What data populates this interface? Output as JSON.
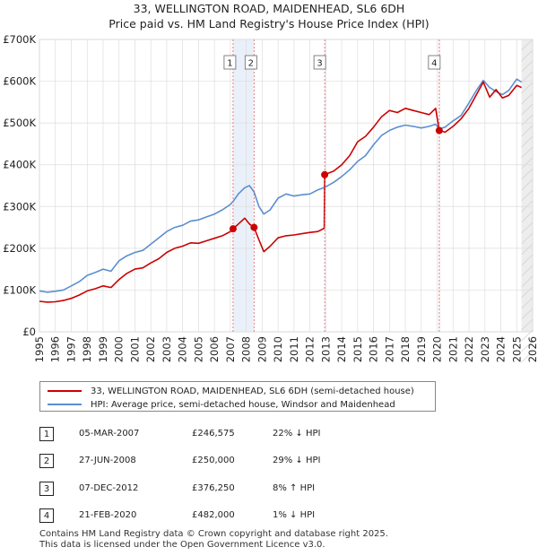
{
  "chart_data": {
    "type": "line",
    "title": "33, WELLINGTON ROAD, MAIDENHEAD, SL6 6DH",
    "subtitle": "Price paid vs. HM Land Registry's House Price Index (HPI)",
    "xlim": [
      1995,
      2026
    ],
    "ylim": [
      0,
      700000
    ],
    "x_ticks": [
      "1995",
      "1996",
      "1997",
      "1998",
      "1999",
      "2000",
      "2001",
      "2002",
      "2003",
      "2004",
      "2005",
      "2006",
      "2007",
      "2008",
      "2009",
      "2010",
      "2011",
      "2012",
      "2013",
      "2014",
      "2015",
      "2016",
      "2017",
      "2018",
      "2019",
      "2020",
      "2021",
      "2022",
      "2023",
      "2024",
      "2025",
      "2026"
    ],
    "y_ticks": [
      {
        "value": 0,
        "label": "£0"
      },
      {
        "value": 100000,
        "label": "£100K"
      },
      {
        "value": 200000,
        "label": "£200K"
      },
      {
        "value": 300000,
        "label": "£300K"
      },
      {
        "value": 400000,
        "label": "£400K"
      },
      {
        "value": 500000,
        "label": "£500K"
      },
      {
        "value": 600000,
        "label": "£600K"
      },
      {
        "value": 700000,
        "label": "£700K"
      }
    ],
    "shaded_ranges": [
      [
        2007.17,
        2008.49
      ],
      [
        2012.93,
        2013.0
      ],
      [
        2020.13,
        2020.2
      ],
      [
        2025.3,
        2026
      ]
    ],
    "series": [
      {
        "name": "33, WELLINGTON ROAD, MAIDENHEAD, SL6 6DH (semi-detached house)",
        "color": "#cc0000",
        "points": [
          [
            1995.0,
            73000
          ],
          [
            1995.5,
            71000
          ],
          [
            1996.0,
            72000
          ],
          [
            1996.5,
            75000
          ],
          [
            1997.0,
            80000
          ],
          [
            1997.5,
            88000
          ],
          [
            1998.0,
            98000
          ],
          [
            1998.5,
            103000
          ],
          [
            1999.0,
            110000
          ],
          [
            1999.5,
            106000
          ],
          [
            2000.0,
            125000
          ],
          [
            2000.5,
            140000
          ],
          [
            2001.0,
            150000
          ],
          [
            2001.5,
            153000
          ],
          [
            2002.0,
            165000
          ],
          [
            2002.5,
            175000
          ],
          [
            2003.0,
            190000
          ],
          [
            2003.5,
            200000
          ],
          [
            2004.0,
            205000
          ],
          [
            2004.5,
            213000
          ],
          [
            2005.0,
            212000
          ],
          [
            2005.5,
            218000
          ],
          [
            2006.0,
            224000
          ],
          [
            2006.5,
            230000
          ],
          [
            2007.0,
            240000
          ],
          [
            2007.17,
            246575
          ],
          [
            2007.5,
            258000
          ],
          [
            2007.9,
            272000
          ],
          [
            2008.2,
            258000
          ],
          [
            2008.49,
            250000
          ],
          [
            2008.8,
            220000
          ],
          [
            2009.1,
            192000
          ],
          [
            2009.5,
            205000
          ],
          [
            2010.0,
            225000
          ],
          [
            2010.5,
            230000
          ],
          [
            2011.0,
            232000
          ],
          [
            2011.5,
            235000
          ],
          [
            2012.0,
            238000
          ],
          [
            2012.5,
            240000
          ],
          [
            2012.9,
            248000
          ],
          [
            2012.93,
            376250
          ],
          [
            2013.5,
            385000
          ],
          [
            2014.0,
            400000
          ],
          [
            2014.5,
            422000
          ],
          [
            2015.0,
            455000
          ],
          [
            2015.5,
            468000
          ],
          [
            2016.0,
            490000
          ],
          [
            2016.5,
            515000
          ],
          [
            2017.0,
            530000
          ],
          [
            2017.5,
            525000
          ],
          [
            2018.0,
            535000
          ],
          [
            2018.5,
            530000
          ],
          [
            2019.0,
            525000
          ],
          [
            2019.5,
            520000
          ],
          [
            2019.9,
            535000
          ],
          [
            2020.13,
            482000
          ],
          [
            2020.5,
            478000
          ],
          [
            2021.0,
            492000
          ],
          [
            2021.5,
            510000
          ],
          [
            2022.0,
            535000
          ],
          [
            2022.5,
            570000
          ],
          [
            2022.9,
            598000
          ],
          [
            2023.3,
            562000
          ],
          [
            2023.7,
            580000
          ],
          [
            2024.1,
            560000
          ],
          [
            2024.5,
            566000
          ],
          [
            2025.0,
            590000
          ],
          [
            2025.3,
            585000
          ]
        ]
      },
      {
        "name": "HPI: Average price, semi-detached house, Windsor and Maidenhead",
        "color": "#5b8fd0",
        "points": [
          [
            1995.0,
            98000
          ],
          [
            1995.5,
            95000
          ],
          [
            1996.0,
            97000
          ],
          [
            1996.5,
            100000
          ],
          [
            1997.0,
            110000
          ],
          [
            1997.5,
            120000
          ],
          [
            1998.0,
            135000
          ],
          [
            1998.5,
            142000
          ],
          [
            1999.0,
            150000
          ],
          [
            1999.5,
            145000
          ],
          [
            2000.0,
            170000
          ],
          [
            2000.5,
            182000
          ],
          [
            2001.0,
            190000
          ],
          [
            2001.5,
            195000
          ],
          [
            2002.0,
            210000
          ],
          [
            2002.5,
            225000
          ],
          [
            2003.0,
            240000
          ],
          [
            2003.5,
            250000
          ],
          [
            2004.0,
            255000
          ],
          [
            2004.5,
            265000
          ],
          [
            2005.0,
            268000
          ],
          [
            2005.5,
            275000
          ],
          [
            2006.0,
            282000
          ],
          [
            2006.5,
            292000
          ],
          [
            2007.0,
            305000
          ],
          [
            2007.17,
            312000
          ],
          [
            2007.5,
            330000
          ],
          [
            2007.9,
            345000
          ],
          [
            2008.2,
            350000
          ],
          [
            2008.49,
            335000
          ],
          [
            2008.8,
            300000
          ],
          [
            2009.1,
            282000
          ],
          [
            2009.5,
            292000
          ],
          [
            2010.0,
            320000
          ],
          [
            2010.5,
            330000
          ],
          [
            2011.0,
            325000
          ],
          [
            2011.5,
            328000
          ],
          [
            2012.0,
            330000
          ],
          [
            2012.5,
            340000
          ],
          [
            2012.93,
            346000
          ],
          [
            2013.5,
            358000
          ],
          [
            2014.0,
            372000
          ],
          [
            2014.5,
            388000
          ],
          [
            2015.0,
            408000
          ],
          [
            2015.5,
            422000
          ],
          [
            2016.0,
            448000
          ],
          [
            2016.5,
            470000
          ],
          [
            2017.0,
            482000
          ],
          [
            2017.5,
            490000
          ],
          [
            2018.0,
            495000
          ],
          [
            2018.5,
            492000
          ],
          [
            2019.0,
            488000
          ],
          [
            2019.5,
            492000
          ],
          [
            2019.9,
            497000
          ],
          [
            2020.13,
            486000
          ],
          [
            2020.5,
            490000
          ],
          [
            2021.0,
            505000
          ],
          [
            2021.5,
            518000
          ],
          [
            2022.0,
            548000
          ],
          [
            2022.5,
            580000
          ],
          [
            2022.9,
            602000
          ],
          [
            2023.3,
            585000
          ],
          [
            2023.7,
            575000
          ],
          [
            2024.1,
            568000
          ],
          [
            2024.5,
            578000
          ],
          [
            2025.0,
            605000
          ],
          [
            2025.3,
            598000
          ]
        ]
      }
    ],
    "markers": [
      {
        "id": "1",
        "x": 2007.17,
        "y": 246575
      },
      {
        "id": "2",
        "x": 2008.49,
        "y": 250000
      },
      {
        "id": "3",
        "x": 2012.93,
        "y": 376250
      },
      {
        "id": "4",
        "x": 2020.13,
        "y": 482000
      }
    ]
  },
  "legend": {
    "items": [
      {
        "label": "33, WELLINGTON ROAD, MAIDENHEAD, SL6 6DH (semi-detached house)",
        "color": "#cc0000"
      },
      {
        "label": "HPI: Average price, semi-detached house, Windsor and Maidenhead",
        "color": "#5b8fd0"
      }
    ]
  },
  "transactions": [
    {
      "num": "1",
      "date": "05-MAR-2007",
      "price": "£246,575",
      "hpi": "22% ↓ HPI"
    },
    {
      "num": "2",
      "date": "27-JUN-2008",
      "price": "£250,000",
      "hpi": "29% ↓ HPI"
    },
    {
      "num": "3",
      "date": "07-DEC-2012",
      "price": "£376,250",
      "hpi": "8% ↑ HPI"
    },
    {
      "num": "4",
      "date": "21-FEB-2020",
      "price": "£482,000",
      "hpi": "1% ↓ HPI"
    }
  ],
  "footer": {
    "line1": "Contains HM Land Registry data © Crown copyright and database right 2025.",
    "line2": "This data is licensed under the Open Government Licence v3.0."
  }
}
